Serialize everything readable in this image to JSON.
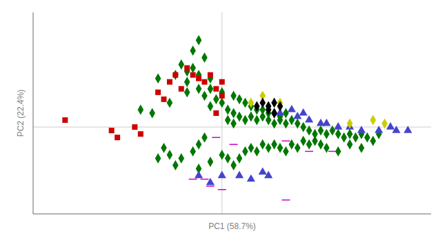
{
  "chart_data": {
    "type": "scatter",
    "xlabel": "PC1 (58.7%)",
    "ylabel": "PC2 (22.4%)",
    "xlim": [
      -0.65,
      0.72
    ],
    "ylim": [
      -0.5,
      0.66
    ],
    "tick_labels": false,
    "grid": false,
    "series": [
      {
        "color": "#007700",
        "marker": "diamond",
        "x": [
          -0.08,
          -0.1,
          -0.06,
          -0.22,
          -0.14,
          -0.1,
          -0.08,
          -0.04,
          -0.12,
          -0.08,
          -0.12,
          -0.06,
          -0.04,
          0.0,
          -0.02,
          -0.04,
          0.0,
          0.02,
          0.04,
          0.02,
          0.04,
          0.06,
          0.08,
          0.1,
          0.12,
          0.14,
          0.16,
          0.18,
          0.2,
          0.22,
          0.24,
          0.26,
          0.28,
          0.3,
          0.32,
          0.34,
          0.36,
          0.38,
          0.4,
          0.42,
          0.44,
          0.46,
          0.48,
          0.5,
          0.52,
          0.54,
          -0.18,
          -0.24,
          -0.28,
          -0.16,
          -0.12,
          0.04,
          0.06,
          0.08,
          0.1,
          0.12,
          0.14,
          0.16,
          0.18,
          0.2,
          0.22,
          -0.06,
          -0.08,
          -0.1,
          -0.14,
          -0.16,
          -0.18,
          -0.2,
          -0.22,
          -0.08,
          -0.04,
          0.0,
          0.02,
          0.04,
          0.06,
          0.08,
          0.1,
          0.12,
          0.14,
          0.16,
          0.18,
          0.2,
          0.22,
          0.24,
          0.26,
          0.28,
          0.3,
          0.32,
          0.34,
          0.36,
          0.4,
          0.44,
          0.48
        ],
        "values": [
          0.5,
          0.44,
          0.4,
          0.28,
          0.36,
          0.34,
          0.3,
          0.28,
          0.26,
          0.22,
          0.2,
          0.18,
          0.22,
          0.2,
          0.16,
          0.12,
          0.14,
          0.1,
          0.08,
          0.04,
          0.02,
          0.06,
          0.04,
          0.06,
          0.04,
          0.06,
          0.04,
          0.02,
          0.04,
          0.02,
          0.04,
          0.02,
          0.0,
          -0.02,
          -0.04,
          -0.02,
          -0.04,
          -0.02,
          -0.04,
          -0.06,
          -0.04,
          -0.06,
          -0.04,
          -0.06,
          -0.08,
          -0.04,
          0.14,
          0.08,
          0.1,
          0.3,
          0.32,
          0.18,
          0.16,
          0.14,
          0.12,
          0.1,
          0.1,
          0.08,
          0.08,
          0.06,
          0.08,
          -0.06,
          -0.1,
          -0.14,
          -0.18,
          -0.22,
          -0.16,
          -0.12,
          -0.18,
          -0.24,
          -0.2,
          -0.16,
          -0.18,
          -0.22,
          -0.18,
          -0.14,
          -0.12,
          -0.14,
          -0.1,
          -0.12,
          -0.1,
          -0.12,
          -0.14,
          -0.1,
          -0.12,
          -0.08,
          -0.1,
          -0.08,
          -0.1,
          -0.12,
          -0.14,
          -0.1,
          -0.12
        ]
      },
      {
        "color": "#cc0000",
        "marker": "square",
        "x": [
          -0.54,
          -0.38,
          -0.36,
          -0.3,
          -0.28,
          -0.22,
          -0.18,
          -0.16,
          -0.12,
          -0.1,
          -0.08,
          -0.06,
          -0.04,
          0.0,
          -0.14,
          -0.2,
          0.0,
          -0.02,
          -0.02
        ],
        "values": [
          0.04,
          -0.02,
          -0.06,
          0.0,
          -0.04,
          0.2,
          0.26,
          0.3,
          0.34,
          0.3,
          0.28,
          0.26,
          0.3,
          0.26,
          0.22,
          0.16,
          0.18,
          0.22,
          0.08
        ]
      },
      {
        "color": "#4444cc",
        "marker": "triangle",
        "x": [
          0.2,
          0.24,
          0.26,
          0.28,
          0.3,
          0.34,
          0.36,
          0.4,
          0.44,
          0.48,
          0.54,
          0.58,
          0.6,
          0.64,
          -0.08,
          -0.04,
          0.0,
          0.06,
          0.1,
          0.14,
          0.16
        ],
        "values": [
          0.08,
          0.1,
          0.06,
          0.08,
          0.04,
          0.02,
          0.02,
          0.0,
          0.0,
          -0.02,
          -0.02,
          0.0,
          -0.02,
          -0.02,
          -0.28,
          -0.32,
          -0.28,
          -0.28,
          -0.3,
          -0.26,
          -0.28
        ]
      },
      {
        "color": "#cccc00",
        "marker": "diamond",
        "x": [
          0.1,
          0.14,
          0.2,
          0.44,
          0.52,
          0.56
        ],
        "values": [
          0.14,
          0.18,
          0.14,
          0.02,
          0.04,
          0.02
        ]
      },
      {
        "color": "#000000",
        "marker": "diamond",
        "x": [
          0.12,
          0.14,
          0.16,
          0.18,
          0.2,
          0.16,
          0.18
        ],
        "values": [
          0.12,
          0.14,
          0.12,
          0.14,
          0.12,
          0.1,
          0.08
        ]
      },
      {
        "color": "#cc00cc",
        "marker": "dash",
        "x": [
          -0.02,
          0.04,
          -0.1,
          -0.06,
          -0.04,
          0.0,
          0.22,
          0.3,
          0.38,
          0.22
        ],
        "values": [
          -0.06,
          -0.1,
          -0.3,
          -0.3,
          -0.34,
          -0.36,
          -0.08,
          -0.14,
          -0.14,
          -0.42
        ]
      }
    ]
  }
}
